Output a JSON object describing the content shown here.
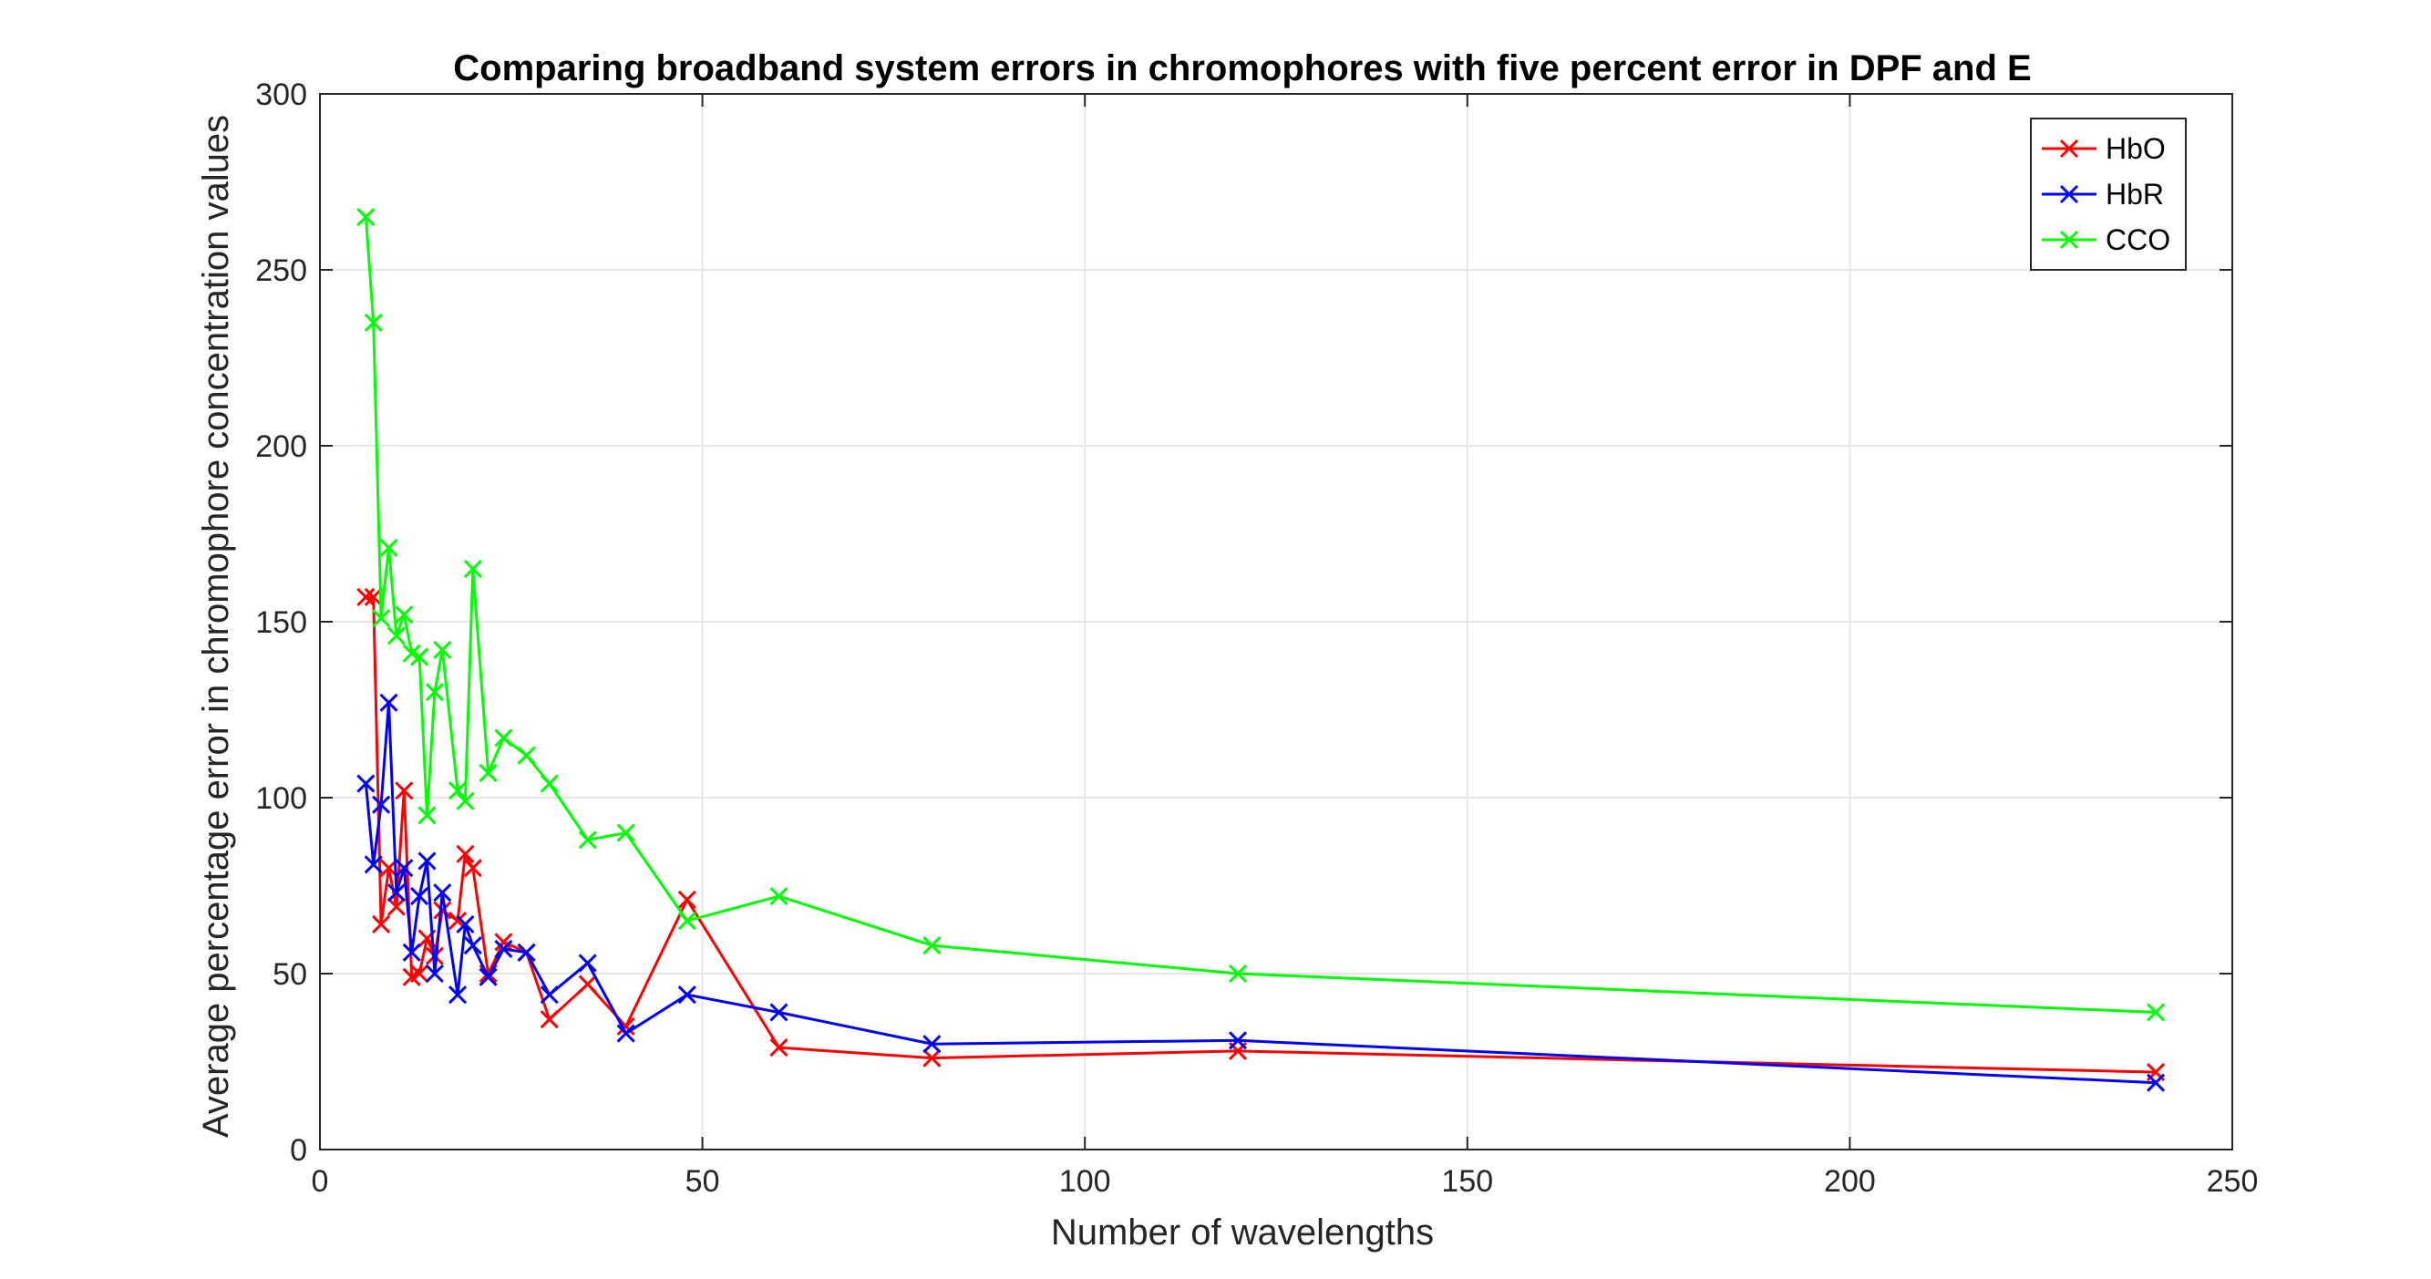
{
  "chart_data": {
    "type": "line",
    "title": "Comparing broadband system errors in chromophores with five percent error in DPF and E",
    "xlabel": "Number of wavelengths",
    "ylabel": "Average percentage error in chromophore concentration values",
    "xlim": [
      0,
      250
    ],
    "ylim": [
      0,
      300
    ],
    "xticks": [
      0,
      50,
      100,
      150,
      200,
      250
    ],
    "yticks": [
      0,
      50,
      100,
      150,
      200,
      250,
      300
    ],
    "grid": true,
    "legend_position": "top-right",
    "marker": "x",
    "series": [
      {
        "name": "HbO",
        "color": "#ff0000",
        "x": [
          6,
          7,
          8,
          9,
          10,
          11,
          12,
          13,
          14,
          15,
          16,
          18,
          19,
          20,
          22,
          24,
          27,
          30,
          35,
          40,
          48,
          60,
          80,
          120,
          240
        ],
        "y": [
          157,
          157,
          64,
          80,
          69,
          102,
          49,
          50,
          60,
          55,
          68,
          65,
          84,
          80,
          50,
          59,
          56,
          37,
          47,
          35,
          71,
          29,
          26,
          28,
          22
        ]
      },
      {
        "name": "HbR",
        "color": "#0000ff",
        "x": [
          6,
          7,
          8,
          9,
          10,
          11,
          12,
          13,
          14,
          15,
          16,
          18,
          19,
          20,
          22,
          24,
          27,
          30,
          35,
          40,
          48,
          60,
          80,
          120,
          240
        ],
        "y": [
          104,
          81,
          98,
          127,
          73,
          80,
          56,
          72,
          82,
          50,
          73,
          44,
          64,
          58,
          49,
          57,
          56,
          44,
          53,
          33,
          44,
          39,
          30,
          31,
          19
        ]
      },
      {
        "name": "CCO",
        "color": "#00ff00",
        "x": [
          6,
          7,
          8,
          9,
          10,
          11,
          12,
          13,
          14,
          15,
          16,
          18,
          19,
          20,
          22,
          24,
          27,
          30,
          35,
          40,
          48,
          60,
          80,
          120,
          240
        ],
        "y": [
          265,
          235,
          151,
          171,
          146,
          152,
          141,
          140,
          95,
          130,
          142,
          102,
          99,
          165,
          107,
          117,
          112,
          104,
          88,
          90,
          65,
          72,
          58,
          50,
          39
        ]
      }
    ]
  }
}
